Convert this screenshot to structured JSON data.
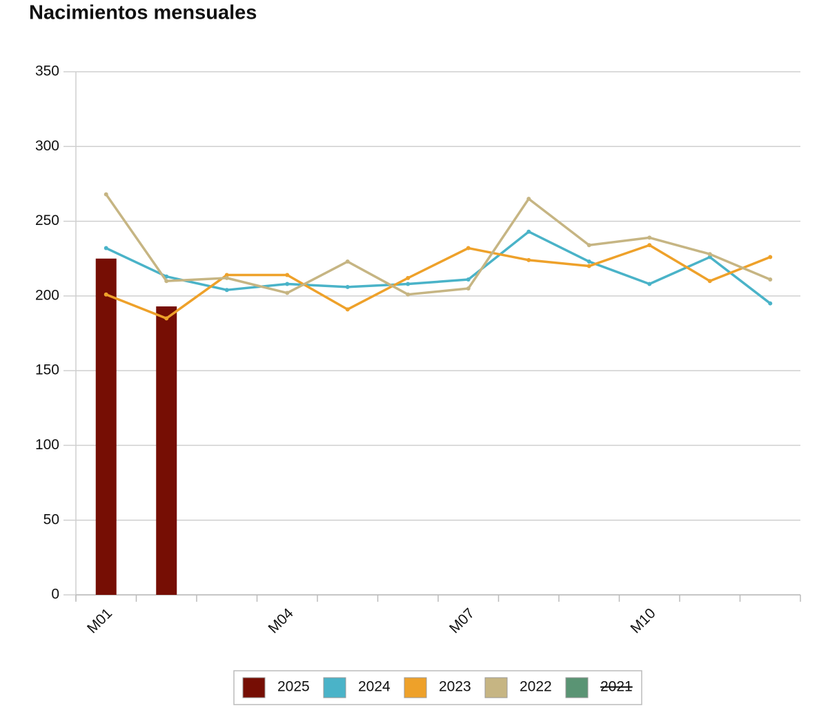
{
  "chart_data": {
    "type": "bar-line",
    "title": "Nacimientos mensuales",
    "categories": [
      "M01",
      null,
      null,
      "M04",
      null,
      null,
      "M07",
      null,
      null,
      "M10",
      null,
      null
    ],
    "series": [
      {
        "name": "2025",
        "type": "bar",
        "color": "#760e04",
        "values": [
          225,
          193,
          null,
          null,
          null,
          null,
          null,
          null,
          null,
          null,
          null,
          null
        ]
      },
      {
        "name": "2024",
        "type": "line",
        "color": "#4ab3c8",
        "values": [
          232,
          213,
          204,
          208,
          206,
          208,
          211,
          243,
          223,
          208,
          226,
          195
        ]
      },
      {
        "name": "2023",
        "type": "line",
        "color": "#eea12a",
        "values": [
          201,
          185,
          214,
          214,
          191,
          212,
          232,
          224,
          220,
          234,
          210,
          226
        ]
      },
      {
        "name": "2022",
        "type": "line",
        "color": "#c6b583",
        "values": [
          268,
          210,
          212,
          202,
          223,
          201,
          205,
          265,
          234,
          239,
          228,
          211
        ]
      },
      {
        "name": "2021",
        "type": "line",
        "color": "#5a9474",
        "hidden": true,
        "values": [
          null,
          null,
          null,
          null,
          null,
          null,
          null,
          null,
          null,
          null,
          null,
          null
        ]
      }
    ],
    "ylim": [
      0,
      350
    ],
    "yticks": [
      0,
      50,
      100,
      150,
      200,
      250,
      300,
      350
    ],
    "grid": true,
    "legend": "bottom"
  }
}
